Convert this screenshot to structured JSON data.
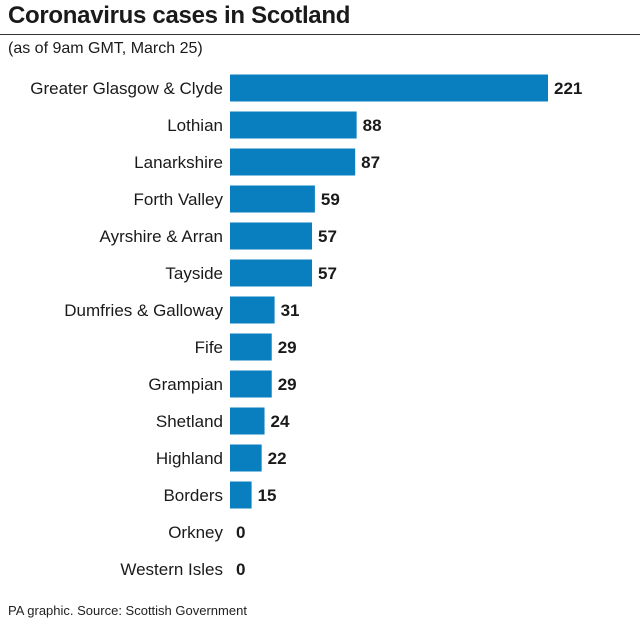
{
  "header": {
    "title": "Coronavirus cases in Scotland",
    "subtitle": "(as of 9am GMT, March 25)"
  },
  "footer": {
    "source": "PA graphic. Source: Scottish Government"
  },
  "colors": {
    "bar": "#0a7fbf",
    "text": "#1a1a1a",
    "rule": "#333333"
  },
  "chart_data": {
    "type": "bar",
    "orientation": "horizontal",
    "title": "Coronavirus cases in Scotland",
    "subtitle": "(as of 9am GMT, March 25)",
    "xlabel": "",
    "ylabel": "",
    "grid": false,
    "categories": [
      "Greater Glasgow & Clyde",
      "Lothian",
      "Lanarkshire",
      "Forth Valley",
      "Ayrshire & Arran",
      "Tayside",
      "Dumfries & Galloway",
      "Fife",
      "Grampian",
      "Shetland",
      "Highland",
      "Borders",
      "Orkney",
      "Western Isles"
    ],
    "values": [
      221,
      88,
      87,
      59,
      57,
      57,
      31,
      29,
      29,
      24,
      22,
      15,
      0,
      0
    ],
    "xlim": [
      0,
      221
    ]
  }
}
